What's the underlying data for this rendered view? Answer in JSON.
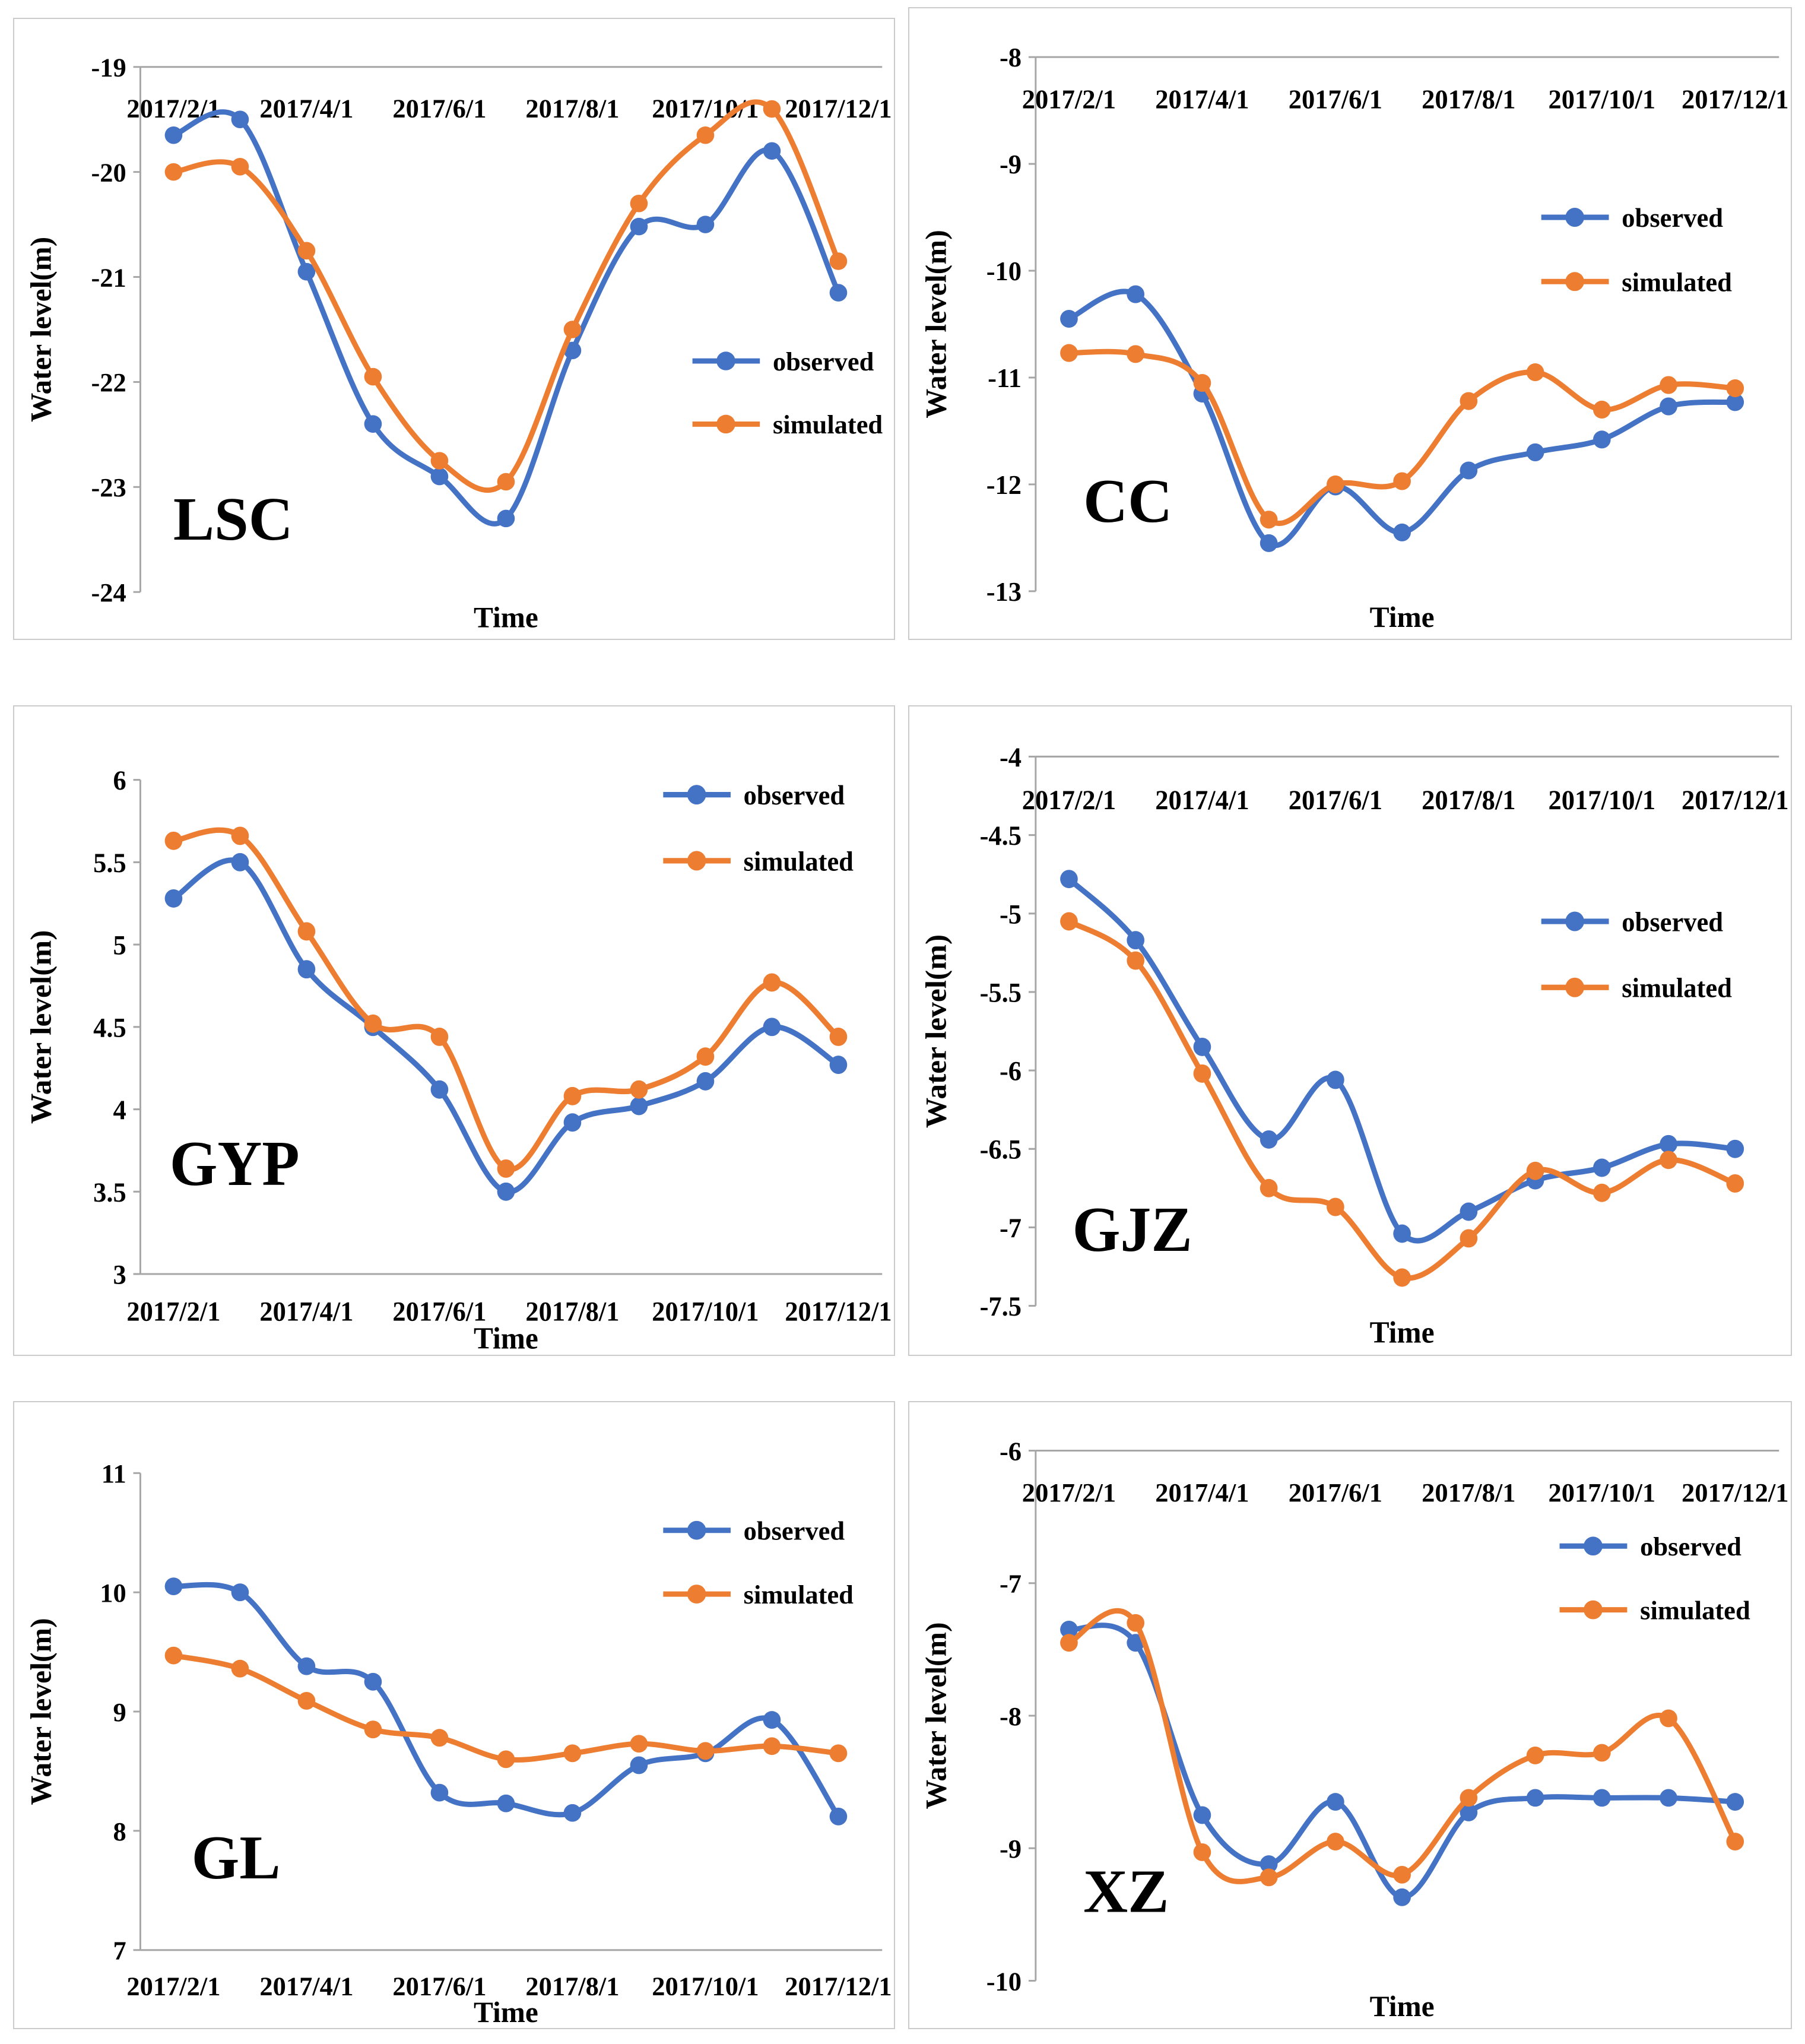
{
  "page": {
    "background": "#ffffff"
  },
  "colors": {
    "observed": "#4472C4",
    "simulated": "#ED7D31",
    "axis": "#a6a6a6",
    "text": "#000000",
    "panel_border": "#cbcbcb"
  },
  "legend": {
    "observed_label": "observed",
    "simulated_label": "simulated"
  },
  "chart_data": [
    {
      "type": "line",
      "station": "LSC",
      "ylabel": "Water level(m)",
      "xlabel": "Time",
      "x_label_position": "top",
      "n_points": 11,
      "x_ticks": [
        {
          "label": "2017/2/1",
          "slot": 0
        },
        {
          "label": "2017/4/1",
          "slot": 2
        },
        {
          "label": "2017/6/1",
          "slot": 4
        },
        {
          "label": "2017/8/1",
          "slot": 6
        },
        {
          "label": "2017/10/1",
          "slot": 8
        },
        {
          "label": "2017/12/1",
          "slot": 10
        }
      ],
      "ylim": [
        -24,
        -19
      ],
      "yticks": [
        -19,
        -20,
        -21,
        -22,
        -23,
        -24
      ],
      "legend_pos": [
        0.755,
        0.56
      ],
      "station_pos": [
        0.045,
        0.9
      ],
      "series": [
        {
          "name": "observed",
          "label": "observed",
          "values": [
            -19.65,
            -19.5,
            -20.95,
            -22.4,
            -22.9,
            -23.3,
            -21.7,
            -20.52,
            -20.5,
            -19.8,
            -21.15
          ]
        },
        {
          "name": "simulated",
          "label": "simulated",
          "values": [
            -20.0,
            -19.95,
            -20.75,
            -21.95,
            -22.75,
            -22.95,
            -21.5,
            -20.3,
            -19.65,
            -19.4,
            -20.85
          ]
        }
      ]
    },
    {
      "type": "line",
      "station": "CC",
      "ylabel": "Water level(m)",
      "xlabel": "Time",
      "x_label_position": "top",
      "n_points": 11,
      "x_ticks": [
        {
          "label": "2017/2/1",
          "slot": 0
        },
        {
          "label": "2017/4/1",
          "slot": 2
        },
        {
          "label": "2017/6/1",
          "slot": 4
        },
        {
          "label": "2017/8/1",
          "slot": 6
        },
        {
          "label": "2017/10/1",
          "slot": 8
        },
        {
          "label": "2017/12/1",
          "slot": 10
        }
      ],
      "ylim": [
        -13,
        -8
      ],
      "yticks": [
        -8,
        -9,
        -10,
        -11,
        -12,
        -13
      ],
      "legend_pos": [
        0.69,
        0.3
      ],
      "station_pos": [
        0.065,
        0.87
      ],
      "series": [
        {
          "name": "observed",
          "label": "observed",
          "values": [
            -10.45,
            -10.22,
            -11.15,
            -12.55,
            -12.02,
            -12.45,
            -11.87,
            -11.7,
            -11.58,
            -11.27,
            -11.23
          ]
        },
        {
          "name": "simulated",
          "label": "simulated",
          "values": [
            -10.77,
            -10.78,
            -11.05,
            -12.33,
            -12.0,
            -11.97,
            -11.22,
            -10.95,
            -11.3,
            -11.07,
            -11.1
          ]
        }
      ]
    },
    {
      "type": "line",
      "station": "GYP",
      "ylabel": "Water level(m)",
      "xlabel": "Time",
      "x_label_position": "bottom",
      "n_points": 11,
      "x_ticks": [
        {
          "label": "2017/2/1",
          "slot": 0
        },
        {
          "label": "2017/4/1",
          "slot": 2
        },
        {
          "label": "2017/6/1",
          "slot": 4
        },
        {
          "label": "2017/8/1",
          "slot": 6
        },
        {
          "label": "2017/10/1",
          "slot": 8
        },
        {
          "label": "2017/12/1",
          "slot": 10
        }
      ],
      "ylim": [
        3,
        6
      ],
      "yticks": [
        6,
        5.5,
        5,
        4.5,
        4,
        3.5,
        3
      ],
      "legend_pos": [
        0.715,
        0.03
      ],
      "station_pos": [
        0.04,
        0.82
      ],
      "series": [
        {
          "name": "observed",
          "label": "observed",
          "values": [
            5.28,
            5.5,
            4.85,
            4.5,
            4.12,
            3.5,
            3.92,
            4.02,
            4.17,
            4.5,
            4.27
          ]
        },
        {
          "name": "simulated",
          "label": "simulated",
          "values": [
            5.63,
            5.66,
            5.08,
            4.52,
            4.44,
            3.64,
            4.08,
            4.12,
            4.32,
            4.77,
            4.44
          ]
        }
      ]
    },
    {
      "type": "line",
      "station": "GJZ",
      "ylabel": "Water level(m)",
      "xlabel": "Time",
      "x_label_position": "top",
      "n_points": 11,
      "x_ticks": [
        {
          "label": "2017/2/1",
          "slot": 0
        },
        {
          "label": "2017/4/1",
          "slot": 2
        },
        {
          "label": "2017/6/1",
          "slot": 4
        },
        {
          "label": "2017/8/1",
          "slot": 6
        },
        {
          "label": "2017/10/1",
          "slot": 8
        },
        {
          "label": "2017/12/1",
          "slot": 10
        }
      ],
      "ylim": [
        -7.5,
        -4
      ],
      "yticks": [
        -4,
        -4.5,
        -5,
        -5.5,
        -6,
        -6.5,
        -7,
        -7.5
      ],
      "legend_pos": [
        0.69,
        0.3
      ],
      "station_pos": [
        0.05,
        0.9
      ],
      "series": [
        {
          "name": "observed",
          "label": "observed",
          "values": [
            -4.78,
            -5.17,
            -5.85,
            -6.44,
            -6.06,
            -7.04,
            -6.9,
            -6.7,
            -6.62,
            -6.47,
            -6.5
          ]
        },
        {
          "name": "simulated",
          "label": "simulated",
          "values": [
            -5.05,
            -5.3,
            -6.02,
            -6.75,
            -6.87,
            -7.32,
            -7.07,
            -6.64,
            -6.78,
            -6.57,
            -6.72
          ]
        }
      ]
    },
    {
      "type": "line",
      "station": "GL",
      "ylabel": "Water level(m)",
      "xlabel": "Time",
      "x_label_position": "bottom",
      "n_points": 11,
      "x_ticks": [
        {
          "label": "2017/2/1",
          "slot": 0
        },
        {
          "label": "2017/4/1",
          "slot": 2
        },
        {
          "label": "2017/6/1",
          "slot": 4
        },
        {
          "label": "2017/8/1",
          "slot": 6
        },
        {
          "label": "2017/10/1",
          "slot": 8
        },
        {
          "label": "2017/12/1",
          "slot": 10
        }
      ],
      "ylim": [
        7,
        11
      ],
      "yticks": [
        11,
        10,
        9,
        8,
        7
      ],
      "legend_pos": [
        0.715,
        0.12
      ],
      "station_pos": [
        0.07,
        0.85
      ],
      "series": [
        {
          "name": "observed",
          "label": "observed",
          "values": [
            10.05,
            10.0,
            9.38,
            9.25,
            8.32,
            8.23,
            8.15,
            8.55,
            8.65,
            8.93,
            8.12
          ]
        },
        {
          "name": "simulated",
          "label": "simulated",
          "values": [
            9.47,
            9.36,
            9.09,
            8.85,
            8.78,
            8.6,
            8.65,
            8.73,
            8.67,
            8.71,
            8.65
          ]
        }
      ]
    },
    {
      "type": "line",
      "station": "XZ",
      "ylabel": "Water level(m)",
      "xlabel": "Time",
      "x_label_position": "top",
      "n_points": 11,
      "x_ticks": [
        {
          "label": "2017/2/1",
          "slot": 0
        },
        {
          "label": "2017/4/1",
          "slot": 2
        },
        {
          "label": "2017/6/1",
          "slot": 4
        },
        {
          "label": "2017/8/1",
          "slot": 6
        },
        {
          "label": "2017/10/1",
          "slot": 8
        },
        {
          "label": "2017/12/1",
          "slot": 10
        }
      ],
      "ylim": [
        -10,
        -6
      ],
      "yticks": [
        -6,
        -7,
        -8,
        -9,
        -10
      ],
      "legend_pos": [
        0.715,
        0.18
      ],
      "station_pos": [
        0.065,
        0.87
      ],
      "series": [
        {
          "name": "observed",
          "label": "observed",
          "values": [
            -7.35,
            -7.45,
            -8.75,
            -9.12,
            -8.65,
            -9.37,
            -8.73,
            -8.62,
            -8.62,
            -8.62,
            -8.65
          ]
        },
        {
          "name": "simulated",
          "label": "simulated",
          "values": [
            -7.45,
            -7.3,
            -9.03,
            -9.22,
            -8.95,
            -9.2,
            -8.62,
            -8.3,
            -8.28,
            -8.02,
            -8.95
          ]
        }
      ]
    }
  ]
}
